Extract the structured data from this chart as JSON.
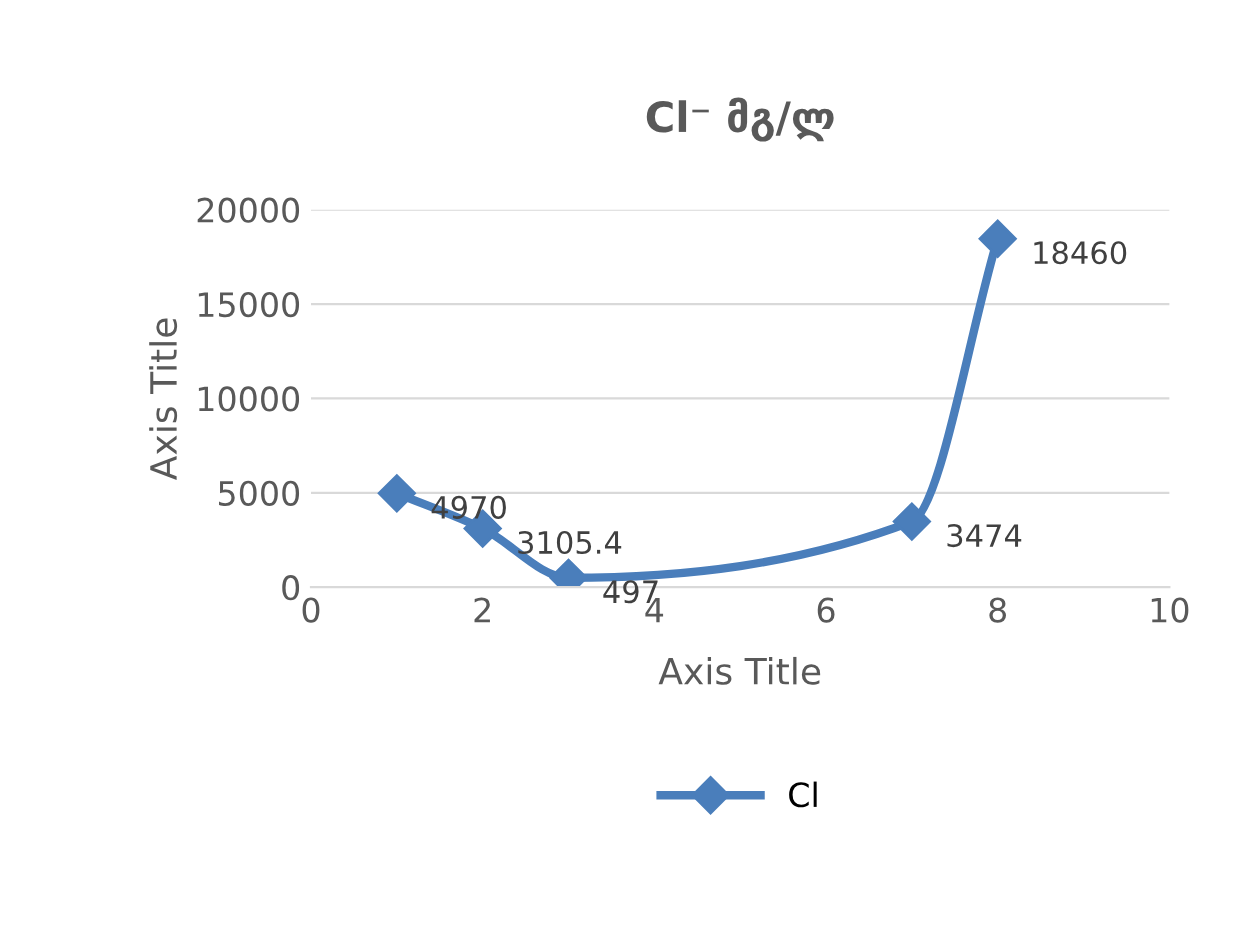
{
  "chart_data": {
    "type": "line",
    "title": "Cl⁻ მგ/ლ",
    "xlabel": "Axis Title",
    "ylabel": "Axis Title",
    "x": [
      1,
      2,
      3,
      7,
      8
    ],
    "series": [
      {
        "name": "Cl",
        "color": "#4a7ebb",
        "values": [
          4970,
          3105.4,
          497,
          3474,
          18460
        ]
      }
    ],
    "xlim": [
      0,
      10
    ],
    "xticks": [
      0,
      2,
      4,
      6,
      8,
      10
    ],
    "ylim": [
      0,
      20000
    ],
    "yticks": [
      0,
      5000,
      10000,
      15000,
      20000
    ],
    "grid": "y",
    "legend": "bottom",
    "marker": "diamond",
    "line_style": "solid",
    "data_labels": true
  }
}
